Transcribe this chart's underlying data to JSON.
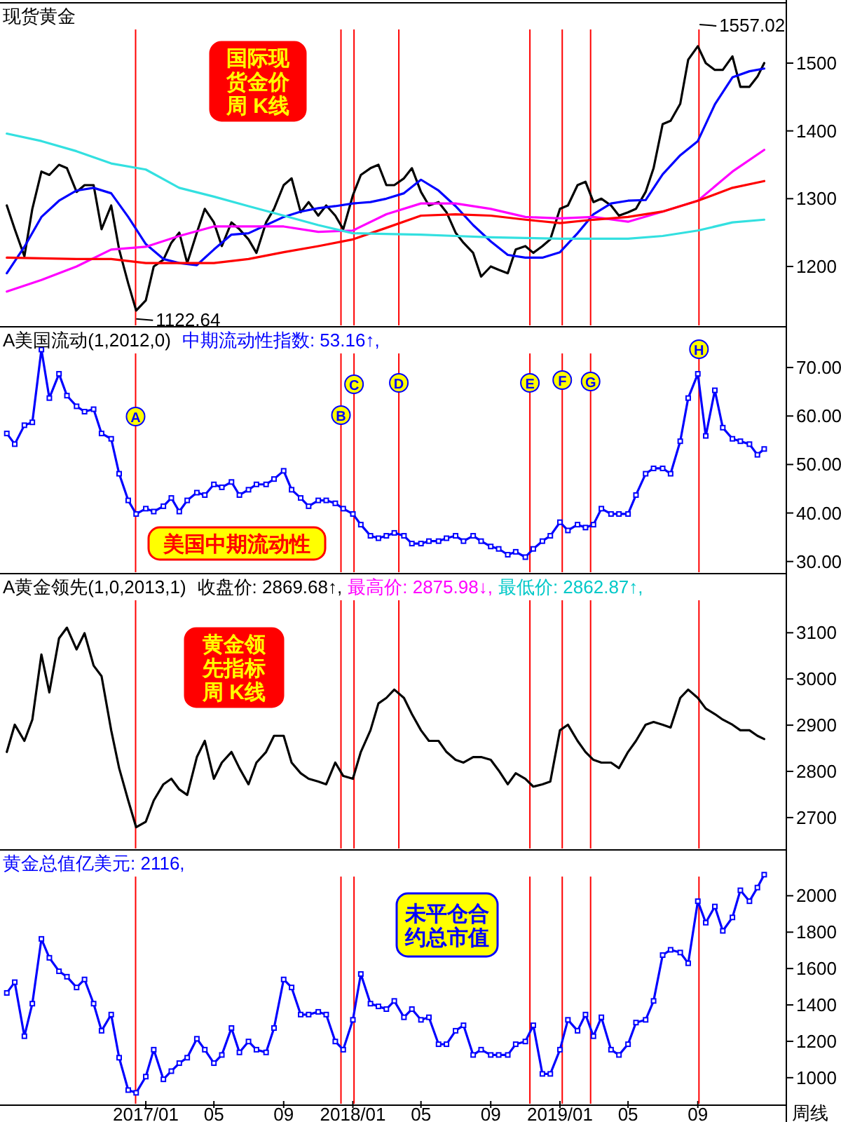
{
  "chart_data": [
    {
      "type": "line",
      "title": "现货黄金",
      "tick_labels": "y",
      "xlim": [
        "2016-04-19",
        "2020-02-04"
      ],
      "ylim": [
        1111,
        1589
      ],
      "yticks": [
        1200,
        1300,
        1400,
        1500
      ],
      "x": [
        "2016-05-01",
        "2016-05-15",
        "2016-06-01",
        "2016-06-15",
        "2016-07-01",
        "2016-07-15",
        "2016-08-01",
        "2016-08-15",
        "2016-09-01",
        "2016-09-15",
        "2016-10-01",
        "2016-10-15",
        "2016-11-01",
        "2016-11-15",
        "2016-12-01",
        "2016-12-15",
        "2017-01-01",
        "2017-01-15",
        "2017-02-01",
        "2017-02-15",
        "2017-03-01",
        "2017-03-15",
        "2017-04-01",
        "2017-04-15",
        "2017-05-01",
        "2017-05-15",
        "2017-06-01",
        "2017-06-15",
        "2017-07-01",
        "2017-07-15",
        "2017-08-01",
        "2017-08-15",
        "2017-09-01",
        "2017-09-15",
        "2017-10-01",
        "2017-10-15",
        "2017-11-01",
        "2017-11-15",
        "2017-12-01",
        "2017-12-15",
        "2018-01-01",
        "2018-01-15",
        "2018-02-01",
        "2018-02-15",
        "2018-03-01",
        "2018-03-15",
        "2018-04-01",
        "2018-04-15",
        "2018-05-01",
        "2018-05-15",
        "2018-06-01",
        "2018-06-15",
        "2018-07-01",
        "2018-07-15",
        "2018-08-01",
        "2018-08-15",
        "2018-09-01",
        "2018-09-15",
        "2018-10-01",
        "2018-10-15",
        "2018-11-01",
        "2018-11-15",
        "2018-12-01",
        "2018-12-15",
        "2019-01-01",
        "2019-01-15",
        "2019-02-01",
        "2019-02-15",
        "2019-03-01",
        "2019-03-15",
        "2019-04-01",
        "2019-04-15",
        "2019-05-01",
        "2019-05-15",
        "2019-06-01",
        "2019-06-15",
        "2019-07-01",
        "2019-07-15",
        "2019-08-01",
        "2019-08-15",
        "2019-09-01",
        "2019-09-15",
        "2019-10-01",
        "2019-10-15",
        "2019-11-01",
        "2019-11-15",
        "2019-12-01",
        "2019-12-15",
        "2019-12-27"
      ],
      "series": [
        {
          "color": "#000000",
          "values": [
            1290,
            1255,
            1215,
            1285,
            1340,
            1335,
            1350,
            1345,
            1310,
            1320,
            1320,
            1255,
            1290,
            1225,
            1175,
            1135,
            1150,
            1200,
            1210,
            1235,
            1250,
            1205,
            1250,
            1285,
            1265,
            1230,
            1265,
            1255,
            1240,
            1220,
            1265,
            1285,
            1320,
            1330,
            1280,
            1295,
            1275,
            1290,
            1275,
            1255,
            1305,
            1335,
            1345,
            1350,
            1320,
            1320,
            1330,
            1345,
            1310,
            1290,
            1295,
            1280,
            1250,
            1235,
            1220,
            1185,
            1200,
            1195,
            1190,
            1225,
            1230,
            1220,
            1230,
            1240,
            1285,
            1290,
            1320,
            1325,
            1295,
            1300,
            1290,
            1275,
            1280,
            1285,
            1310,
            1345,
            1410,
            1415,
            1440,
            1505,
            1525,
            1500,
            1490,
            1490,
            1510,
            1465,
            1465,
            1480,
            1500
          ]
        },
        {
          "color": "#0000ff",
          "x": [
            "2016-05-01",
            "2016-06-01",
            "2016-07-01",
            "2016-08-01",
            "2016-09-01",
            "2016-10-01",
            "2016-11-01",
            "2016-12-01",
            "2017-01-01",
            "2017-02-01",
            "2017-03-01",
            "2017-04-01",
            "2017-05-01",
            "2017-06-01",
            "2017-07-01",
            "2017-08-01",
            "2017-09-01",
            "2017-10-01",
            "2017-11-01",
            "2017-12-01",
            "2018-01-01",
            "2018-02-01",
            "2018-03-01",
            "2018-04-01",
            "2018-05-01",
            "2018-06-01",
            "2018-07-01",
            "2018-08-01",
            "2018-09-01",
            "2018-10-01",
            "2018-11-01",
            "2018-12-01",
            "2019-01-01",
            "2019-02-01",
            "2019-03-01",
            "2019-04-01",
            "2019-05-01",
            "2019-06-01",
            "2019-07-01",
            "2019-08-01",
            "2019-09-01",
            "2019-10-01",
            "2019-11-01",
            "2019-12-01",
            "2019-12-27"
          ],
          "values": [
            1190,
            1229,
            1273,
            1297,
            1312,
            1316,
            1308,
            1273,
            1233,
            1211,
            1205,
            1202,
            1225,
            1247,
            1249,
            1261,
            1273,
            1281,
            1286,
            1289,
            1293,
            1295,
            1300,
            1308,
            1328,
            1312,
            1289,
            1261,
            1237,
            1217,
            1213,
            1213,
            1221,
            1249,
            1277,
            1293,
            1297,
            1298,
            1336,
            1364,
            1385,
            1439,
            1479,
            1488,
            1492
          ]
        },
        {
          "color": "#ff00ff",
          "x": [
            "2016-05-01",
            "2016-07-01",
            "2016-09-01",
            "2016-11-01",
            "2017-01-01",
            "2017-03-01",
            "2017-05-01",
            "2017-07-01",
            "2017-09-01",
            "2017-11-01",
            "2018-01-01",
            "2018-03-01",
            "2018-05-01",
            "2018-07-01",
            "2018-09-01",
            "2018-11-01",
            "2019-01-01",
            "2019-03-01",
            "2019-05-01",
            "2019-07-01",
            "2019-09-01",
            "2019-11-01",
            "2019-12-27"
          ],
          "values": [
            1163,
            1180,
            1200,
            1225,
            1229,
            1245,
            1259,
            1259,
            1259,
            1251,
            1253,
            1277,
            1293,
            1293,
            1285,
            1273,
            1271,
            1273,
            1266,
            1281,
            1297,
            1340,
            1372
          ]
        },
        {
          "color": "#ff0000",
          "x": [
            "2016-05-01",
            "2016-07-01",
            "2016-09-01",
            "2016-11-01",
            "2017-01-01",
            "2017-03-01",
            "2017-05-01",
            "2017-07-01",
            "2017-09-01",
            "2017-11-01",
            "2018-01-01",
            "2018-03-01",
            "2018-05-01",
            "2018-07-01",
            "2018-09-01",
            "2018-11-01",
            "2019-01-01",
            "2019-03-01",
            "2019-05-01",
            "2019-07-01",
            "2019-09-01",
            "2019-11-01",
            "2019-12-27"
          ],
          "values": [
            1213,
            1212,
            1211,
            1211,
            1205,
            1205,
            1205,
            1211,
            1221,
            1230,
            1240,
            1257,
            1275,
            1277,
            1275,
            1269,
            1264,
            1269,
            1273,
            1281,
            1297,
            1316,
            1326
          ]
        },
        {
          "color": "#33e0e0",
          "x": [
            "2016-05-01",
            "2016-07-01",
            "2016-09-01",
            "2016-11-01",
            "2017-01-01",
            "2017-03-01",
            "2017-05-01",
            "2017-07-01",
            "2017-09-01",
            "2017-11-01",
            "2018-01-01",
            "2018-03-01",
            "2018-05-01",
            "2018-07-01",
            "2018-09-01",
            "2018-11-01",
            "2019-01-01",
            "2019-03-01",
            "2019-05-01",
            "2019-07-01",
            "2019-09-01",
            "2019-11-01",
            "2019-12-27"
          ],
          "values": [
            1396,
            1385,
            1370,
            1352,
            1343,
            1316,
            1303,
            1289,
            1275,
            1261,
            1249,
            1248,
            1247,
            1245,
            1243,
            1242,
            1241,
            1241,
            1241,
            1245,
            1253,
            1265,
            1269
          ]
        }
      ],
      "ref_lines": [
        {
          "axis": "x",
          "value": "2016-12-14"
        },
        {
          "axis": "x",
          "value": "2017-12-11"
        },
        {
          "axis": "x",
          "value": "2018-01-03"
        },
        {
          "axis": "x",
          "value": "2018-03-23"
        },
        {
          "axis": "x",
          "value": "2018-11-09"
        },
        {
          "axis": "x",
          "value": "2019-01-05"
        },
        {
          "axis": "x",
          "value": "2019-02-24"
        },
        {
          "axis": "x",
          "value": "2019-09-03"
        }
      ],
      "annotations": [
        {
          "text": "1557.02",
          "x": "2019-09-04",
          "y": 1557.02
        },
        {
          "text": "1122.64",
          "x": "2016-12-15",
          "y": 1122.64
        },
        "国际现货金价周 K线"
      ]
    },
    {
      "type": "line",
      "title": "A美国流动(1,2012,0)",
      "tick_labels": "y",
      "marker": "square",
      "xlim": [
        "2016-04-19",
        "2020-02-04"
      ],
      "ylim": [
        27.5,
        78.4
      ],
      "yticks": [
        {
          "value": 30,
          "label": "30.00"
        },
        {
          "value": 40,
          "label": "40.00"
        },
        {
          "value": 50,
          "label": "50.00"
        },
        {
          "value": 60,
          "label": "60.00"
        },
        {
          "value": 70,
          "label": "70.00"
        }
      ],
      "x": [
        "2016-05-01",
        "2016-05-15",
        "2016-06-01",
        "2016-06-15",
        "2016-07-01",
        "2016-07-15",
        "2016-08-01",
        "2016-08-15",
        "2016-09-01",
        "2016-09-15",
        "2016-10-01",
        "2016-10-15",
        "2016-11-01",
        "2016-11-15",
        "2016-12-01",
        "2016-12-15",
        "2017-01-01",
        "2017-01-15",
        "2017-02-01",
        "2017-02-15",
        "2017-03-01",
        "2017-03-15",
        "2017-04-01",
        "2017-04-15",
        "2017-05-01",
        "2017-05-15",
        "2017-06-01",
        "2017-06-15",
        "2017-07-01",
        "2017-07-15",
        "2017-08-01",
        "2017-08-15",
        "2017-09-01",
        "2017-09-15",
        "2017-10-01",
        "2017-10-15",
        "2017-11-01",
        "2017-11-15",
        "2017-12-01",
        "2017-12-15",
        "2018-01-01",
        "2018-01-15",
        "2018-02-01",
        "2018-02-15",
        "2018-03-01",
        "2018-03-15",
        "2018-04-01",
        "2018-04-15",
        "2018-05-01",
        "2018-05-15",
        "2018-06-01",
        "2018-06-15",
        "2018-07-01",
        "2018-07-15",
        "2018-08-01",
        "2018-08-15",
        "2018-09-01",
        "2018-09-15",
        "2018-10-01",
        "2018-10-15",
        "2018-11-01",
        "2018-11-15",
        "2018-12-01",
        "2018-12-15",
        "2019-01-01",
        "2019-01-15",
        "2019-02-01",
        "2019-02-15",
        "2019-03-01",
        "2019-03-15",
        "2019-04-01",
        "2019-04-15",
        "2019-05-01",
        "2019-05-15",
        "2019-06-01",
        "2019-06-15",
        "2019-07-01",
        "2019-07-15",
        "2019-08-01",
        "2019-08-15",
        "2019-09-01",
        "2019-09-15",
        "2019-10-01",
        "2019-10-15",
        "2019-11-01",
        "2019-11-15",
        "2019-12-01",
        "2019-12-15",
        "2019-12-27"
      ],
      "series": [
        {
          "color": "#0000ff",
          "values": [
            56.4,
            54.2,
            58.1,
            58.7,
            73.7,
            63.7,
            68.7,
            64.2,
            62,
            60.9,
            61.4,
            56.4,
            55.3,
            48.1,
            42.6,
            39.8,
            40.9,
            40.3,
            41.4,
            43.1,
            40.3,
            42.6,
            44.2,
            43.7,
            45.9,
            45.3,
            46.4,
            43.7,
            44.8,
            45.9,
            45.9,
            47,
            48.7,
            44.8,
            43.1,
            41.4,
            42.6,
            42.6,
            42,
            40.9,
            39.8,
            37.6,
            35.3,
            34.8,
            35.3,
            35.9,
            35.3,
            33.7,
            33.7,
            34.2,
            34.2,
            34.8,
            35.3,
            34.2,
            35.3,
            34.2,
            33.1,
            32.6,
            31.4,
            32,
            30.9,
            32.6,
            34.2,
            35.3,
            38.1,
            36.4,
            37.6,
            37,
            37.6,
            40.9,
            39.8,
            39.8,
            39.8,
            43.7,
            48.1,
            49.2,
            49.2,
            48.1,
            54.8,
            63.7,
            68.7,
            55.9,
            65.3,
            57.6,
            55.3,
            54.8,
            54.2,
            52,
            53.2
          ]
        }
      ],
      "ref_lines": [
        {
          "axis": "x",
          "value": "2016-12-14",
          "label": "A"
        },
        {
          "axis": "x",
          "value": "2017-12-11",
          "label": "B"
        },
        {
          "axis": "x",
          "value": "2018-01-03",
          "label": "C"
        },
        {
          "axis": "x",
          "value": "2018-03-23",
          "label": "D"
        },
        {
          "axis": "x",
          "value": "2018-11-09",
          "label": "E"
        },
        {
          "axis": "x",
          "value": "2019-01-05",
          "label": "F"
        },
        {
          "axis": "x",
          "value": "2019-02-24",
          "label": "G"
        },
        {
          "axis": "x",
          "value": "2019-09-03",
          "label": "H"
        }
      ],
      "annotations": [
        "中期流动性指数: 53.16↑,",
        "美国中期流动性"
      ]
    },
    {
      "type": "line",
      "title": "A黄金领先(1,0,2013,1)",
      "tick_labels": "y",
      "xlim": [
        "2016-04-19",
        "2020-02-04"
      ],
      "ylim": [
        2630,
        3228
      ],
      "yticks": [
        2700,
        2800,
        2900,
        3000,
        3100
      ],
      "x": [
        "2016-05-01",
        "2016-05-15",
        "2016-06-01",
        "2016-06-15",
        "2016-07-01",
        "2016-07-15",
        "2016-08-01",
        "2016-08-15",
        "2016-09-01",
        "2016-09-15",
        "2016-10-01",
        "2016-10-15",
        "2016-11-01",
        "2016-11-15",
        "2016-12-01",
        "2016-12-15",
        "2017-01-01",
        "2017-01-15",
        "2017-02-01",
        "2017-02-15",
        "2017-03-01",
        "2017-03-15",
        "2017-04-01",
        "2017-04-15",
        "2017-05-01",
        "2017-05-15",
        "2017-06-01",
        "2017-06-15",
        "2017-07-01",
        "2017-07-15",
        "2017-08-01",
        "2017-08-15",
        "2017-09-01",
        "2017-09-15",
        "2017-10-01",
        "2017-10-15",
        "2017-11-01",
        "2017-11-15",
        "2017-12-01",
        "2017-12-15",
        "2018-01-01",
        "2018-01-15",
        "2018-02-01",
        "2018-02-15",
        "2018-03-01",
        "2018-03-15",
        "2018-04-01",
        "2018-04-15",
        "2018-05-01",
        "2018-05-15",
        "2018-06-01",
        "2018-06-15",
        "2018-07-01",
        "2018-07-15",
        "2018-08-01",
        "2018-08-15",
        "2018-09-01",
        "2018-09-15",
        "2018-10-01",
        "2018-10-15",
        "2018-11-01",
        "2018-11-15",
        "2018-12-01",
        "2018-12-15",
        "2019-01-01",
        "2019-01-15",
        "2019-02-01",
        "2019-02-15",
        "2019-03-01",
        "2019-03-15",
        "2019-04-01",
        "2019-04-15",
        "2019-05-01",
        "2019-05-15",
        "2019-06-01",
        "2019-06-15",
        "2019-07-01",
        "2019-07-15",
        "2019-08-01",
        "2019-08-15",
        "2019-09-01",
        "2019-09-15",
        "2019-10-01",
        "2019-10-15",
        "2019-11-01",
        "2019-11-15",
        "2019-12-01",
        "2019-12-15",
        "2019-12-27"
      ],
      "series": [
        {
          "color": "#000000",
          "values": [
            2842,
            2901,
            2866,
            2912,
            3053,
            2971,
            3088,
            3111,
            3064,
            3099,
            3029,
            3006,
            2889,
            2807,
            2737,
            2679,
            2691,
            2737,
            2772,
            2784,
            2761,
            2749,
            2831,
            2866,
            2784,
            2819,
            2842,
            2807,
            2772,
            2819,
            2842,
            2877,
            2877,
            2819,
            2796,
            2784,
            2778,
            2772,
            2819,
            2790,
            2784,
            2842,
            2889,
            2947,
            2959,
            2977,
            2959,
            2924,
            2889,
            2866,
            2866,
            2842,
            2825,
            2819,
            2831,
            2831,
            2825,
            2802,
            2772,
            2796,
            2784,
            2767,
            2772,
            2778,
            2889,
            2901,
            2866,
            2842,
            2825,
            2819,
            2819,
            2807,
            2842,
            2866,
            2901,
            2907,
            2901,
            2895,
            2959,
            2977,
            2959,
            2936,
            2924,
            2912,
            2901,
            2889,
            2889,
            2877,
            2870
          ]
        }
      ],
      "ref_lines": [
        {
          "axis": "x",
          "value": "2016-12-14"
        },
        {
          "axis": "x",
          "value": "2017-12-11"
        },
        {
          "axis": "x",
          "value": "2018-01-03"
        },
        {
          "axis": "x",
          "value": "2018-03-23"
        },
        {
          "axis": "x",
          "value": "2018-11-09"
        },
        {
          "axis": "x",
          "value": "2019-01-05"
        },
        {
          "axis": "x",
          "value": "2019-02-24"
        },
        {
          "axis": "x",
          "value": "2019-09-03"
        }
      ],
      "annotations": [
        "收盘价: 2869.68↑,",
        "最高价: 2875.98↓,",
        "最低价: 2862.87↑,",
        "黄金领先指标周 K线"
      ]
    },
    {
      "type": "line",
      "title": "黄金总值亿美元: 2116,",
      "marker": "square",
      "xlim": [
        "2016-04-19",
        "2020-02-04"
      ],
      "ylim": [
        849,
        2252
      ],
      "yticks": [
        1000,
        1200,
        1400,
        1600,
        1800,
        2000
      ],
      "xticks": [
        {
          "value": "2017-01-01",
          "label": "2017/01"
        },
        {
          "value": "2017-05-01",
          "label": "05"
        },
        {
          "value": "2017-09-01",
          "label": "09"
        },
        {
          "value": "2018-01-01",
          "label": "2018/01"
        },
        {
          "value": "2018-05-01",
          "label": "05"
        },
        {
          "value": "2018-09-01",
          "label": "09"
        },
        {
          "value": "2019-01-01",
          "label": "2019/01"
        },
        {
          "value": "2019-05-01",
          "label": "05"
        },
        {
          "value": "2019-09-01",
          "label": "09"
        }
      ],
      "x": [
        "2016-05-01",
        "2016-05-15",
        "2016-06-01",
        "2016-06-15",
        "2016-07-01",
        "2016-07-15",
        "2016-08-01",
        "2016-08-15",
        "2016-09-01",
        "2016-09-15",
        "2016-10-01",
        "2016-10-15",
        "2016-11-01",
        "2016-11-15",
        "2016-12-01",
        "2016-12-15",
        "2017-01-01",
        "2017-01-15",
        "2017-02-01",
        "2017-02-15",
        "2017-03-01",
        "2017-03-15",
        "2017-04-01",
        "2017-04-15",
        "2017-05-01",
        "2017-05-15",
        "2017-06-01",
        "2017-06-15",
        "2017-07-01",
        "2017-07-15",
        "2017-08-01",
        "2017-08-15",
        "2017-09-01",
        "2017-09-15",
        "2017-10-01",
        "2017-10-15",
        "2017-11-01",
        "2017-11-15",
        "2017-12-01",
        "2017-12-15",
        "2018-01-01",
        "2018-01-15",
        "2018-02-01",
        "2018-02-15",
        "2018-03-01",
        "2018-03-15",
        "2018-04-01",
        "2018-04-15",
        "2018-05-01",
        "2018-05-15",
        "2018-06-01",
        "2018-06-15",
        "2018-07-01",
        "2018-07-15",
        "2018-08-01",
        "2018-08-15",
        "2018-09-01",
        "2018-09-15",
        "2018-10-01",
        "2018-10-15",
        "2018-11-01",
        "2018-11-15",
        "2018-12-01",
        "2018-12-15",
        "2019-01-01",
        "2019-01-15",
        "2019-02-01",
        "2019-02-15",
        "2019-03-01",
        "2019-03-15",
        "2019-04-01",
        "2019-04-15",
        "2019-05-01",
        "2019-05-15",
        "2019-06-01",
        "2019-06-15",
        "2019-07-01",
        "2019-07-15",
        "2019-08-01",
        "2019-08-15",
        "2019-09-01",
        "2019-09-15",
        "2019-10-01",
        "2019-10-15",
        "2019-11-01",
        "2019-11-15",
        "2019-12-01",
        "2019-12-15",
        "2019-12-27"
      ],
      "series": [
        {
          "color": "#0000ff",
          "values": [
            1466,
            1525,
            1228,
            1407,
            1763,
            1659,
            1585,
            1555,
            1496,
            1540,
            1407,
            1258,
            1347,
            1110,
            932,
            917,
            1006,
            1154,
            991,
            1036,
            1080,
            1110,
            1214,
            1154,
            1080,
            1125,
            1273,
            1139,
            1199,
            1154,
            1139,
            1273,
            1540,
            1496,
            1347,
            1347,
            1362,
            1347,
            1199,
            1154,
            1318,
            1570,
            1407,
            1392,
            1377,
            1422,
            1332,
            1377,
            1318,
            1332,
            1184,
            1184,
            1258,
            1288,
            1125,
            1154,
            1125,
            1125,
            1125,
            1184,
            1199,
            1288,
            1021,
            1021,
            1154,
            1318,
            1258,
            1347,
            1228,
            1332,
            1154,
            1125,
            1184,
            1303,
            1318,
            1422,
            1674,
            1703,
            1688,
            1629,
            1970,
            1852,
            1941,
            1807,
            1881,
            2030,
            1970,
            2045,
            2116
          ]
        }
      ],
      "ref_lines": [
        {
          "axis": "x",
          "value": "2016-12-14"
        },
        {
          "axis": "x",
          "value": "2017-12-11"
        },
        {
          "axis": "x",
          "value": "2018-01-03"
        },
        {
          "axis": "x",
          "value": "2018-11-09"
        },
        {
          "axis": "x",
          "value": "2019-01-05"
        },
        {
          "axis": "x",
          "value": "2019-02-24"
        },
        {
          "axis": "x",
          "value": "2019-09-03"
        }
      ],
      "annotations": [
        "未平仓合约总市值",
        "周线"
      ]
    }
  ]
}
